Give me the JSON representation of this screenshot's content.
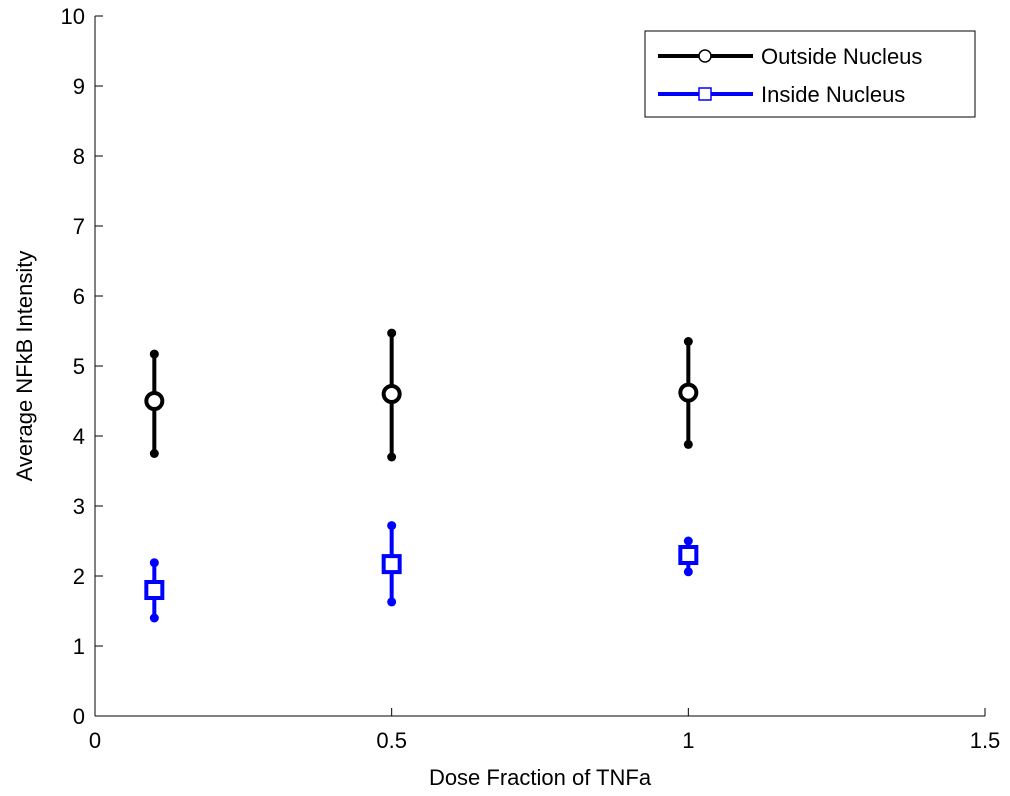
{
  "chart_data": {
    "type": "scatter",
    "title": "",
    "xlabel": "Dose Fraction of TNFa",
    "ylabel": "Average NFkB Intensity",
    "xlim": [
      0,
      1.5
    ],
    "ylim": [
      0,
      10
    ],
    "xticks": [
      0,
      0.5,
      1,
      1.5
    ],
    "xtick_labels": [
      "0",
      "0.5",
      "1",
      "1.5"
    ],
    "yticks": [
      0,
      1,
      2,
      3,
      4,
      5,
      6,
      7,
      8,
      9,
      10
    ],
    "ytick_labels": [
      "0",
      "1",
      "2",
      "3",
      "4",
      "5",
      "6",
      "7",
      "8",
      "9",
      "10"
    ],
    "grid": false,
    "legend_position": "top-right",
    "series": [
      {
        "name": "Outside Nucleus",
        "color": "#000000",
        "marker": "circle",
        "points": [
          {
            "x": 0.1,
            "y": 4.5,
            "ylow": 3.75,
            "yhigh": 5.17
          },
          {
            "x": 0.5,
            "y": 4.6,
            "ylow": 3.7,
            "yhigh": 5.47
          },
          {
            "x": 1.0,
            "y": 4.62,
            "ylow": 3.88,
            "yhigh": 5.35
          }
        ]
      },
      {
        "name": "Inside Nucleus",
        "color": "#0000ff",
        "marker": "square",
        "points": [
          {
            "x": 0.1,
            "y": 1.8,
            "ylow": 1.4,
            "yhigh": 2.19
          },
          {
            "x": 0.5,
            "y": 2.17,
            "ylow": 1.63,
            "yhigh": 2.72
          },
          {
            "x": 1.0,
            "y": 2.3,
            "ylow": 2.06,
            "yhigh": 2.5
          }
        ]
      }
    ]
  }
}
